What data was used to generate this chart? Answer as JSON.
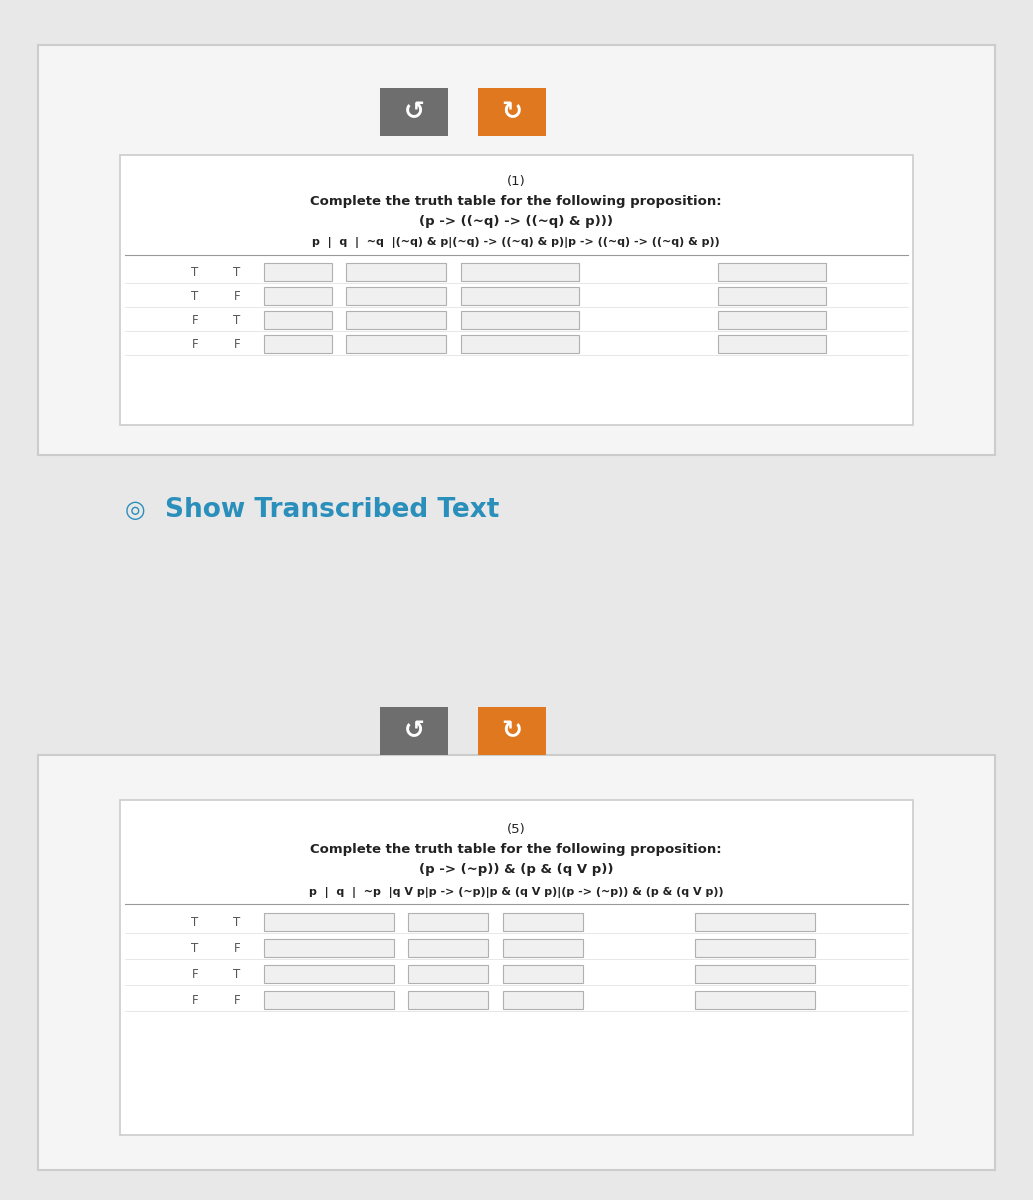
{
  "bg_color": "#e8e8e8",
  "outer_box_facecolor": "#f0f0f0",
  "outer_box_edgecolor": "#cccccc",
  "inner_box_facecolor": "#ffffff",
  "inner_box_edgecolor": "#cccccc",
  "btn_gray_color": "#6e6e6e",
  "btn_orange_color": "#e07820",
  "show_text": "Show Transcribed Text",
  "show_text_color": "#2b8fbb",
  "show_icon_color": "#2b8fbb",
  "table1_number": "(1)",
  "table1_subtitle": "Complete the truth table for the following proposition:",
  "table1_formula": "(p -> ((~q) -> ((~q) & p)))",
  "table1_header_parts": [
    "p",
    "|",
    "q",
    "|",
    "~q",
    "(~q) & p",
    "(~q) -> ((~q) & p)",
    "p -> ((~q) -> ((~q) & p))"
  ],
  "table2_number": "(5)",
  "table2_subtitle": "Complete the truth table for the following proposition:",
  "table2_formula": "(p -> (~p)) & (p & (q V p))",
  "table2_header_parts": [
    "p",
    "|",
    "q",
    "|",
    "~p",
    "q V p",
    "p -> (~p)",
    "p & (q V p)",
    "(p -> (~p)) & (p & (q V p))"
  ],
  "rows": [
    [
      "T",
      "T"
    ],
    [
      "T",
      "F"
    ],
    [
      "F",
      "T"
    ],
    [
      "F",
      "F"
    ]
  ]
}
